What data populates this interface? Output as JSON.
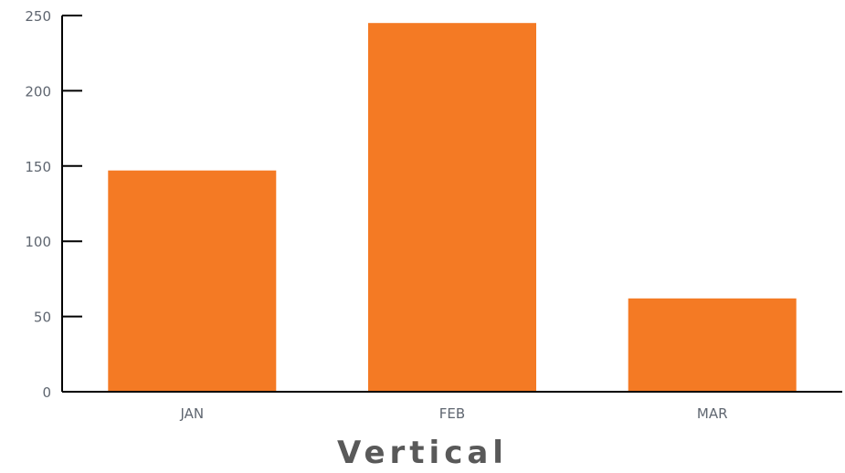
{
  "chart_data": {
    "type": "bar",
    "title": "Vertical",
    "categories": [
      "JAN",
      "FEB",
      "MAR"
    ],
    "values": [
      147,
      245,
      62
    ],
    "xlabel": "",
    "ylabel": "",
    "ylim": [
      0,
      250
    ],
    "yticks": [
      0,
      50,
      100,
      150,
      200,
      250
    ],
    "grid": false,
    "legend": "none",
    "bar_color": "#f47a24",
    "axis_color": "#000000"
  }
}
